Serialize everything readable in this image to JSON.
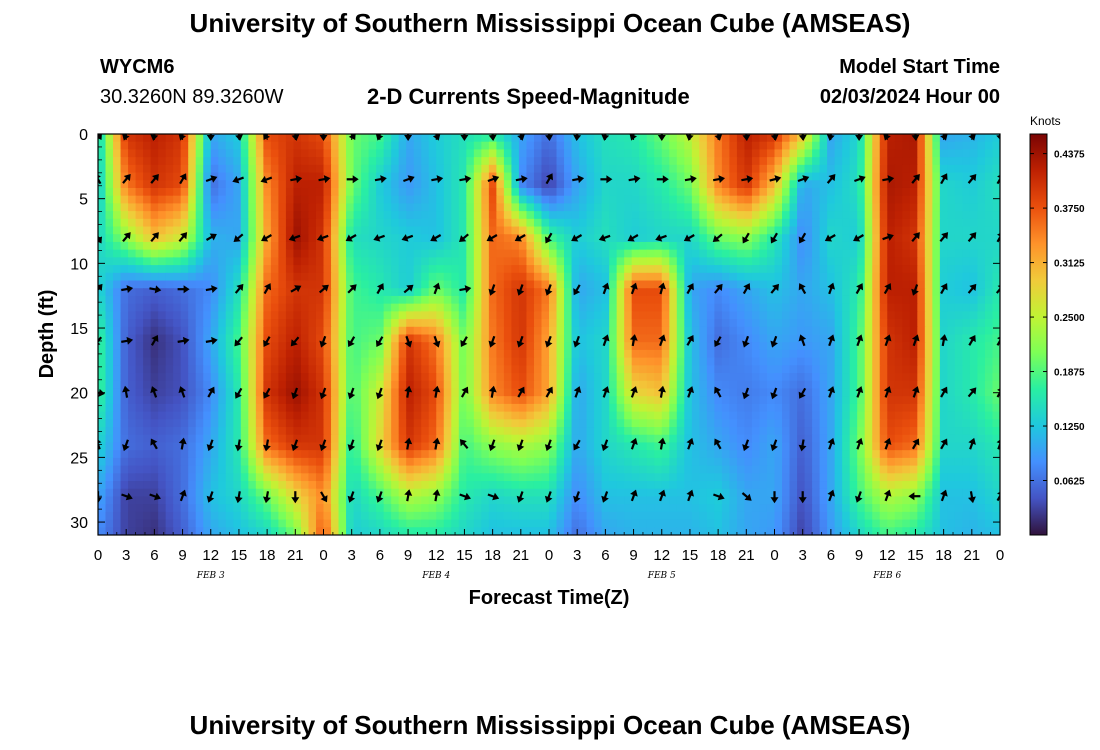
{
  "header": {
    "title": "University of Southern Mississippi Ocean Cube (AMSEAS)",
    "station_id": "WYCM6",
    "coordinates": "30.3260N  89.3260W",
    "subtitle": "2-D Currents Speed-Magnitude",
    "model_start_label": "Model Start Time",
    "model_start_value": "02/03/2024 Hour 00"
  },
  "footer": {
    "title": "University of Southern Mississippi Ocean Cube (AMSEAS)"
  },
  "chart_data": {
    "type": "heatmap",
    "title": "2-D Currents Speed-Magnitude",
    "xlabel": "Forecast Time(Z)",
    "ylabel": "Depth (ft)",
    "x_ticks": [
      "0",
      "3",
      "6",
      "9",
      "12",
      "15",
      "18",
      "21",
      "0",
      "3",
      "6",
      "9",
      "12",
      "15",
      "18",
      "21",
      "0",
      "3",
      "6",
      "9",
      "12",
      "15",
      "18",
      "21",
      "0",
      "3",
      "6",
      "9",
      "12",
      "15",
      "18",
      "21",
      "0"
    ],
    "x_hours": [
      0,
      3,
      6,
      9,
      12,
      15,
      18,
      21,
      24,
      27,
      30,
      33,
      36,
      39,
      42,
      45,
      48,
      51,
      54,
      57,
      60,
      63,
      66,
      69,
      72,
      75,
      78,
      81,
      84,
      87,
      90,
      93,
      96
    ],
    "day_labels": [
      {
        "label": "FEB 3",
        "hour": 12
      },
      {
        "label": "FEB 4",
        "hour": 36
      },
      {
        "label": "FEB 5",
        "hour": 60
      },
      {
        "label": "FEB 6",
        "hour": 84
      }
    ],
    "xlim": [
      0,
      96
    ],
    "y_ticks": [
      "0",
      "5",
      "10",
      "15",
      "20",
      "25",
      "30"
    ],
    "y_values": [
      0,
      5,
      10,
      15,
      20,
      25,
      30
    ],
    "ylim": [
      0,
      31
    ],
    "colorbar": {
      "title": "Knots",
      "ticks": [
        "0.4375",
        "0.3750",
        "0.3125",
        "0.2500",
        "0.1875",
        "0.1250",
        "0.0625"
      ],
      "tick_values": [
        0.4375,
        0.375,
        0.3125,
        0.25,
        0.1875,
        0.125,
        0.0625
      ],
      "range": [
        0,
        0.46
      ],
      "colors": [
        "#30123b",
        "#4454c4",
        "#4490fe",
        "#1fc8de",
        "#29efa2",
        "#7dff56",
        "#c1f334",
        "#f1ca3a",
        "#fe922a",
        "#ea4f0d",
        "#be2102",
        "#7a0403"
      ]
    },
    "speed_grid": {
      "hours": [
        0,
        3,
        6,
        9,
        12,
        15,
        18,
        21,
        24,
        27,
        30,
        33,
        36,
        39,
        42,
        45,
        48,
        51,
        54,
        57,
        60,
        63,
        66,
        69,
        72,
        75,
        78,
        81,
        84,
        87,
        90,
        93,
        96
      ],
      "depths_ft": [
        0,
        4,
        8,
        12,
        16,
        20,
        24,
        28,
        31
      ],
      "values_knots": [
        [
          0.13,
          0.4,
          0.42,
          0.4,
          0.1,
          0.13,
          0.38,
          0.4,
          0.38,
          0.2,
          0.18,
          0.1,
          0.13,
          0.15,
          0.16,
          0.1,
          0.06,
          0.12,
          0.15,
          0.16,
          0.2,
          0.25,
          0.35,
          0.42,
          0.4,
          0.3,
          0.1,
          0.14,
          0.42,
          0.43,
          0.1,
          0.11,
          0.13
        ],
        [
          0.12,
          0.35,
          0.4,
          0.38,
          0.06,
          0.1,
          0.34,
          0.42,
          0.42,
          0.2,
          0.13,
          0.09,
          0.12,
          0.16,
          0.38,
          0.08,
          0.03,
          0.1,
          0.14,
          0.14,
          0.16,
          0.2,
          0.34,
          0.4,
          0.3,
          0.1,
          0.12,
          0.15,
          0.43,
          0.42,
          0.14,
          0.13,
          0.15
        ],
        [
          0.14,
          0.22,
          0.3,
          0.26,
          0.11,
          0.1,
          0.32,
          0.44,
          0.4,
          0.15,
          0.14,
          0.13,
          0.12,
          0.16,
          0.36,
          0.34,
          0.18,
          0.13,
          0.15,
          0.13,
          0.14,
          0.14,
          0.2,
          0.22,
          0.16,
          0.08,
          0.14,
          0.13,
          0.42,
          0.4,
          0.14,
          0.14,
          0.14
        ],
        [
          0.14,
          0.06,
          0.05,
          0.06,
          0.08,
          0.15,
          0.36,
          0.4,
          0.4,
          0.18,
          0.16,
          0.13,
          0.2,
          0.16,
          0.36,
          0.4,
          0.35,
          0.1,
          0.12,
          0.38,
          0.38,
          0.1,
          0.08,
          0.1,
          0.12,
          0.1,
          0.12,
          0.16,
          0.42,
          0.42,
          0.13,
          0.12,
          0.16
        ],
        [
          0.18,
          0.05,
          0.02,
          0.04,
          0.1,
          0.18,
          0.38,
          0.42,
          0.38,
          0.18,
          0.2,
          0.4,
          0.35,
          0.2,
          0.35,
          0.4,
          0.32,
          0.12,
          0.14,
          0.36,
          0.36,
          0.12,
          0.06,
          0.08,
          0.1,
          0.09,
          0.1,
          0.18,
          0.4,
          0.42,
          0.14,
          0.16,
          0.18
        ],
        [
          0.18,
          0.05,
          0.03,
          0.04,
          0.08,
          0.16,
          0.4,
          0.44,
          0.4,
          0.18,
          0.26,
          0.42,
          0.38,
          0.2,
          0.34,
          0.38,
          0.32,
          0.1,
          0.14,
          0.28,
          0.3,
          0.12,
          0.08,
          0.07,
          0.08,
          0.06,
          0.1,
          0.18,
          0.4,
          0.4,
          0.14,
          0.16,
          0.2
        ],
        [
          0.14,
          0.06,
          0.05,
          0.06,
          0.1,
          0.16,
          0.36,
          0.4,
          0.4,
          0.16,
          0.28,
          0.4,
          0.36,
          0.18,
          0.22,
          0.24,
          0.22,
          0.1,
          0.14,
          0.16,
          0.18,
          0.12,
          0.1,
          0.08,
          0.1,
          0.05,
          0.1,
          0.2,
          0.38,
          0.36,
          0.14,
          0.14,
          0.16
        ],
        [
          0.1,
          0.03,
          0.03,
          0.06,
          0.12,
          0.14,
          0.2,
          0.28,
          0.34,
          0.14,
          0.18,
          0.24,
          0.22,
          0.16,
          0.14,
          0.15,
          0.15,
          0.08,
          0.12,
          0.12,
          0.12,
          0.12,
          0.13,
          0.1,
          0.1,
          0.04,
          0.1,
          0.18,
          0.24,
          0.22,
          0.12,
          0.12,
          0.14
        ],
        [
          0.08,
          0.03,
          0.02,
          0.05,
          0.1,
          0.12,
          0.14,
          0.2,
          0.38,
          0.13,
          0.14,
          0.16,
          0.16,
          0.14,
          0.12,
          0.12,
          0.12,
          0.06,
          0.1,
          0.11,
          0.11,
          0.11,
          0.12,
          0.1,
          0.09,
          0.03,
          0.09,
          0.14,
          0.18,
          0.16,
          0.12,
          0.11,
          0.12
        ]
      ]
    },
    "current_arrows": {
      "hours": [
        0,
        3,
        6,
        9,
        12,
        15,
        18,
        21,
        24,
        27,
        30,
        33,
        36,
        39,
        42,
        45,
        48,
        51,
        54,
        57,
        60,
        63,
        66,
        69,
        72,
        75,
        78,
        81,
        84,
        87,
        90,
        93,
        96
      ],
      "depths_ft": [
        0,
        3.5,
        8,
        12,
        16,
        20,
        24,
        28
      ],
      "direction_deg": [
        [
          150,
          200,
          190,
          200,
          180,
          170,
          210,
          170,
          180,
          150,
          200,
          180,
          160,
          180,
          175,
          165,
          175,
          185,
          190,
          200,
          180,
          190,
          165,
          175,
          170,
          175,
          190,
          180,
          200,
          175,
          160,
          160,
          170
        ],
        [
          330,
          40,
          40,
          30,
          70,
          250,
          250,
          80,
          80,
          90,
          80,
          70,
          80,
          80,
          70,
          80,
          30,
          80,
          90,
          80,
          90,
          80,
          80,
          80,
          75,
          70,
          40,
          70,
          80,
          40,
          30,
          40,
          30
        ],
        [
          150,
          40,
          40,
          40,
          60,
          230,
          240,
          250,
          250,
          240,
          250,
          250,
          240,
          230,
          240,
          240,
          210,
          240,
          250,
          240,
          250,
          240,
          230,
          210,
          210,
          210,
          240,
          240,
          70,
          40,
          40,
          40,
          30
        ],
        [
          40,
          80,
          100,
          90,
          80,
          40,
          30,
          60,
          50,
          45,
          30,
          50,
          20,
          80,
          200,
          200,
          200,
          210,
          20,
          20,
          15,
          30,
          40,
          30,
          40,
          330,
          20,
          30,
          30,
          200,
          30,
          40,
          40
        ],
        [
          220,
          80,
          30,
          80,
          80,
          220,
          210,
          220,
          200,
          210,
          210,
          160,
          160,
          210,
          200,
          200,
          200,
          200,
          20,
          10,
          20,
          30,
          210,
          200,
          200,
          340,
          20,
          20,
          20,
          20,
          10,
          30,
          30
        ],
        [
          100,
          350,
          340,
          340,
          30,
          210,
          210,
          200,
          200,
          200,
          200,
          10,
          10,
          30,
          10,
          30,
          30,
          20,
          20,
          20,
          10,
          20,
          330,
          200,
          200,
          210,
          20,
          20,
          20,
          20,
          30,
          40,
          30
        ],
        [
          340,
          200,
          330,
          10,
          200,
          190,
          190,
          200,
          200,
          200,
          200,
          10,
          10,
          320,
          200,
          200,
          200,
          210,
          200,
          20,
          10,
          20,
          330,
          200,
          200,
          190,
          20,
          20,
          20,
          30,
          30,
          20,
          20
        ],
        [
          180,
          110,
          110,
          20,
          200,
          190,
          190,
          180,
          150,
          200,
          200,
          10,
          10,
          110,
          110,
          200,
          200,
          200,
          200,
          20,
          20,
          20,
          110,
          130,
          180,
          180,
          20,
          200,
          20,
          270,
          20,
          170,
          30
        ]
      ]
    }
  }
}
